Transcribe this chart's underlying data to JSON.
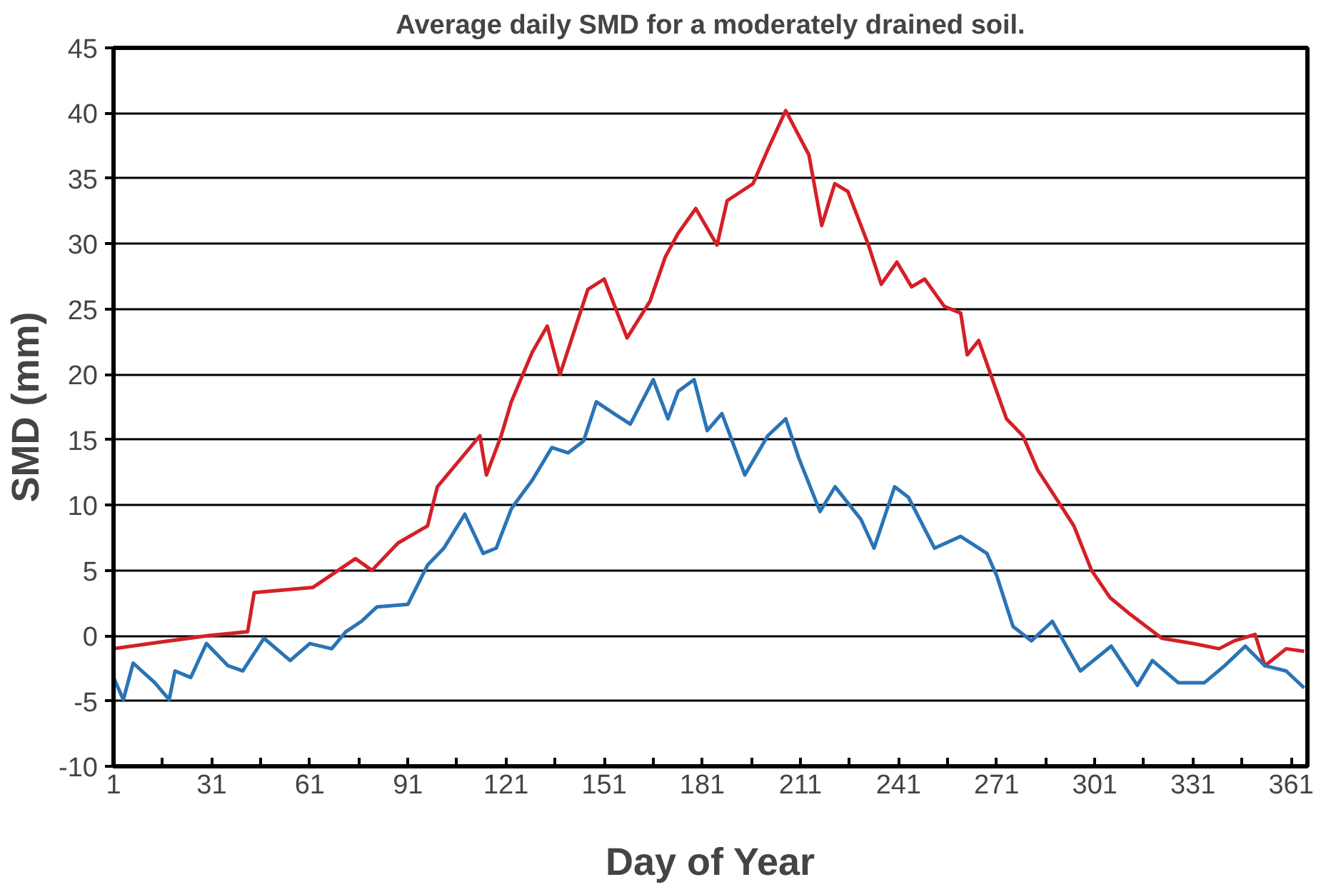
{
  "chart_data": {
    "type": "line",
    "title": "Average daily SMD for a moderately drained soil.",
    "xlabel": "Day of Year",
    "ylabel": "SMD (mm)",
    "xlim": [
      1,
      366
    ],
    "ylim": [
      -10,
      45
    ],
    "xticks": [
      1,
      {
        "value": 16,
        "label": null
      },
      31,
      {
        "value": 46,
        "label": null
      },
      61,
      {
        "value": 76,
        "label": null
      },
      91,
      {
        "value": 106,
        "label": null
      },
      121,
      {
        "value": 136,
        "label": null
      },
      151,
      {
        "value": 166,
        "label": null
      },
      181,
      {
        "value": 196,
        "label": null
      },
      211,
      {
        "value": 226,
        "label": null
      },
      241,
      {
        "value": 256,
        "label": null
      },
      271,
      {
        "value": 286,
        "label": null
      },
      301,
      {
        "value": 316,
        "label": null
      },
      331,
      {
        "value": 346,
        "label": null
      },
      361
    ],
    "yticks": [
      -10,
      -5,
      0,
      5,
      10,
      15,
      20,
      25,
      30,
      35,
      40,
      45
    ],
    "grid": "y",
    "line_style": "solid",
    "marker": "none",
    "series": [
      {
        "color": "#d42027",
        "x": [
          1,
          15,
          30,
          42,
          44,
          62,
          75,
          80,
          88,
          97,
          100,
          113,
          115,
          119.5,
          122.6,
          129,
          133.6,
          137.5,
          146,
          151,
          158,
          165,
          169.7,
          173.6,
          179,
          185.5,
          188.6,
          196.5,
          201,
          206.5,
          213.6,
          217.5,
          221.5,
          225.5,
          231.8,
          235.7,
          240.5,
          245,
          249,
          255,
          260,
          262,
          265.5,
          271,
          274,
          279,
          283.5,
          290,
          294.6,
          300,
          305.7,
          312,
          321.5,
          331,
          339,
          343.6,
          350,
          353,
          359.5,
          365
        ],
        "values": [
          -1.0,
          -0.5,
          0.0,
          0.3,
          3.3,
          3.7,
          5.9,
          5.0,
          7.1,
          8.4,
          11.4,
          15.3,
          12.3,
          15.3,
          17.9,
          21.7,
          23.7,
          20.0,
          26.5,
          27.3,
          22.8,
          25.6,
          29.0,
          30.8,
          32.7,
          29.9,
          33.3,
          34.6,
          37.2,
          40.2,
          36.8,
          31.4,
          34.6,
          34.0,
          29.9,
          26.9,
          28.6,
          26.7,
          27.3,
          25.2,
          24.7,
          21.5,
          22.6,
          18.7,
          16.6,
          15.3,
          12.7,
          10.2,
          8.4,
          5.0,
          2.9,
          1.6,
          -0.2,
          -0.6,
          -1.0,
          -0.4,
          0.1,
          -2.3,
          -1.0,
          -1.2
        ]
      },
      {
        "color": "#2a74b5",
        "x": [
          1,
          4,
          7,
          13.6,
          18,
          19.8,
          24.6,
          29.4,
          36,
          40.5,
          47,
          55,
          61,
          67.7,
          72,
          76.8,
          81.5,
          91,
          97,
          102,
          108.4,
          114,
          118,
          122.6,
          124,
          129,
          135,
          140,
          144.7,
          148.6,
          154,
          159,
          166,
          170.5,
          173.6,
          178.5,
          182.5,
          187,
          194,
          201,
          206.5,
          210.5,
          217,
          221.6,
          229.5,
          233.5,
          239.8,
          244,
          252,
          260,
          268,
          271,
          276,
          281.6,
          288,
          296.6,
          306,
          314,
          318.6,
          326.5,
          334.5,
          340.7,
          347,
          353,
          359.5,
          365
        ],
        "values": [
          -3.2,
          -4.9,
          -2.1,
          -3.6,
          -4.9,
          -2.7,
          -3.2,
          -0.6,
          -2.3,
          -2.7,
          -0.2,
          -1.9,
          -0.6,
          -1.0,
          0.3,
          1.1,
          2.2,
          2.4,
          5.4,
          6.7,
          9.3,
          6.3,
          6.7,
          9.7,
          10.2,
          11.9,
          14.4,
          14.0,
          14.9,
          17.9,
          17.0,
          16.2,
          19.6,
          16.6,
          18.7,
          19.6,
          15.7,
          17.0,
          12.3,
          15.3,
          16.6,
          13.6,
          9.5,
          11.4,
          8.9,
          6.7,
          11.4,
          10.6,
          6.7,
          7.6,
          6.3,
          4.6,
          0.7,
          -0.4,
          1.1,
          -2.7,
          -0.8,
          -3.8,
          -1.9,
          -3.6,
          -3.6,
          -2.3,
          -0.8,
          -2.3,
          -2.7,
          -4.0
        ]
      }
    ]
  }
}
